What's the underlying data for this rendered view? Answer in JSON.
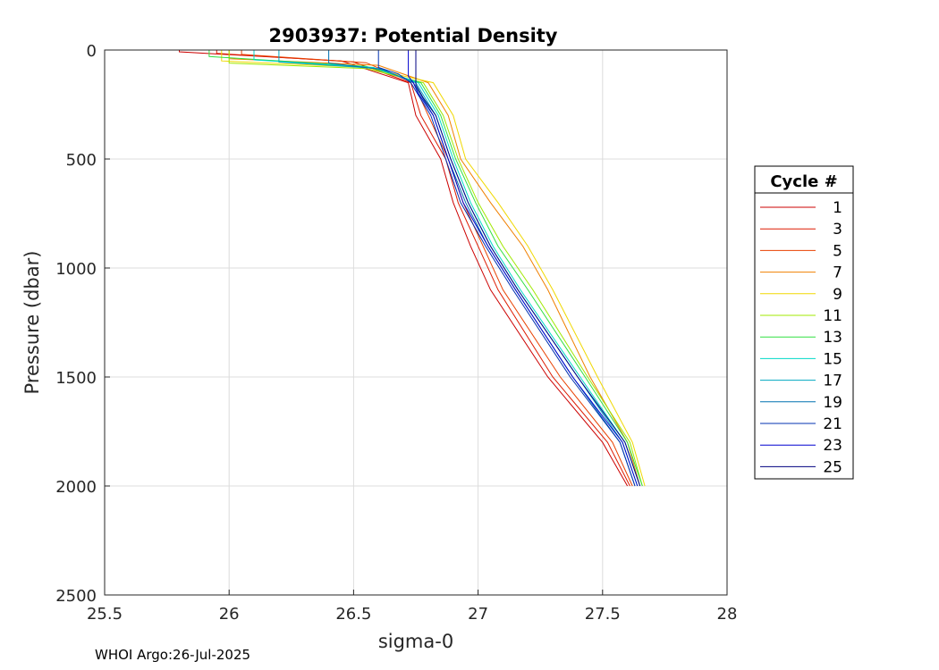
{
  "chart_data": {
    "type": "line",
    "title": "2903937: Potential Density",
    "xlabel": "sigma-0",
    "ylabel": "Pressure (dbar)",
    "xlim": [
      25.5,
      28
    ],
    "ylim": [
      0,
      2500
    ],
    "y_reversed": true,
    "grid": true,
    "xticks": [
      "25.5",
      "26",
      "26.5",
      "27",
      "27.5",
      "28"
    ],
    "yticks": [
      "0",
      "500",
      "1000",
      "1500",
      "2000",
      "2500"
    ],
    "legend": {
      "title": "Cycle #",
      "placement": "right",
      "entries": [
        "1",
        "3",
        "5",
        "7",
        "9",
        "11",
        "13",
        "15",
        "17",
        "19",
        "21",
        "23",
        "25"
      ]
    },
    "series": [
      {
        "name": "1",
        "color": "#cc0000",
        "x": [
          25.8,
          25.8,
          26.45,
          26.72,
          26.75,
          26.85,
          26.9,
          26.97,
          27.05,
          27.28,
          27.5,
          27.6
        ],
        "y": [
          0,
          8,
          50,
          150,
          300,
          500,
          700,
          900,
          1100,
          1500,
          1800,
          2000
        ]
      },
      {
        "name": "3",
        "color": "#dd1a00",
        "x": [
          25.95,
          25.95,
          26.5,
          26.73,
          26.77,
          26.87,
          26.92,
          27.0,
          27.08,
          27.3,
          27.52,
          27.61
        ],
        "y": [
          0,
          15,
          55,
          150,
          300,
          500,
          700,
          900,
          1100,
          1500,
          1800,
          2000
        ]
      },
      {
        "name": "5",
        "color": "#e84000",
        "x": [
          26.05,
          26.05,
          26.55,
          26.74,
          26.8,
          26.88,
          26.94,
          27.02,
          27.1,
          27.33,
          27.54,
          27.62
        ],
        "y": [
          0,
          20,
          58,
          150,
          300,
          500,
          700,
          900,
          1100,
          1500,
          1800,
          2000
        ]
      },
      {
        "name": "7",
        "color": "#f08000",
        "x": [
          26.0,
          26.0,
          26.6,
          26.8,
          26.88,
          26.93,
          27.05,
          27.18,
          27.28,
          27.45,
          27.6,
          27.65
        ],
        "y": [
          0,
          40,
          70,
          150,
          300,
          500,
          700,
          900,
          1100,
          1500,
          1800,
          2000
        ]
      },
      {
        "name": "9",
        "color": "#f0d800",
        "x": [
          25.97,
          25.97,
          26.55,
          26.82,
          26.9,
          26.95,
          27.08,
          27.2,
          27.3,
          27.48,
          27.62,
          27.67
        ],
        "y": [
          0,
          50,
          80,
          150,
          300,
          500,
          700,
          900,
          1100,
          1500,
          1800,
          2000
        ]
      },
      {
        "name": "11",
        "color": "#a0e800",
        "x": [
          26.0,
          26.0,
          26.55,
          26.78,
          26.86,
          26.92,
          27.0,
          27.1,
          27.22,
          27.44,
          27.61,
          27.66
        ],
        "y": [
          0,
          60,
          85,
          150,
          300,
          500,
          700,
          900,
          1100,
          1500,
          1800,
          2000
        ]
      },
      {
        "name": "13",
        "color": "#30e040",
        "x": [
          25.92,
          25.92,
          26.55,
          26.77,
          26.85,
          26.91,
          26.99,
          27.08,
          27.2,
          27.43,
          27.6,
          27.66
        ],
        "y": [
          0,
          30,
          75,
          150,
          300,
          500,
          700,
          900,
          1100,
          1500,
          1800,
          2000
        ]
      },
      {
        "name": "15",
        "color": "#00d8c8",
        "x": [
          26.1,
          26.1,
          26.58,
          26.76,
          26.84,
          26.9,
          26.97,
          27.06,
          27.17,
          27.41,
          27.59,
          27.65
        ],
        "y": [
          0,
          45,
          80,
          150,
          300,
          500,
          700,
          900,
          1100,
          1500,
          1800,
          2000
        ]
      },
      {
        "name": "17",
        "color": "#00a8c0",
        "x": [
          26.2,
          26.2,
          26.6,
          26.75,
          26.83,
          26.89,
          26.96,
          27.05,
          27.16,
          27.4,
          27.58,
          27.64
        ],
        "y": [
          0,
          55,
          85,
          150,
          300,
          500,
          700,
          900,
          1100,
          1500,
          1800,
          2000
        ]
      },
      {
        "name": "19",
        "color": "#0070b0",
        "x": [
          26.4,
          26.4,
          26.62,
          26.74,
          26.82,
          26.88,
          26.95,
          27.04,
          27.15,
          27.38,
          27.57,
          27.63
        ],
        "y": [
          0,
          60,
          90,
          150,
          300,
          500,
          700,
          900,
          1100,
          1500,
          1800,
          2000
        ]
      },
      {
        "name": "21",
        "color": "#0030b0",
        "x": [
          26.6,
          26.6,
          26.68,
          26.73,
          26.81,
          26.87,
          26.93,
          27.03,
          27.14,
          27.37,
          27.57,
          27.63
        ],
        "y": [
          0,
          80,
          110,
          150,
          300,
          500,
          700,
          900,
          1100,
          1500,
          1800,
          2000
        ]
      },
      {
        "name": "23",
        "color": "#0000d0",
        "x": [
          26.72,
          26.72,
          26.74,
          26.76,
          26.82,
          26.88,
          26.94,
          27.04,
          27.15,
          27.38,
          27.58,
          27.64
        ],
        "y": [
          0,
          120,
          150,
          200,
          300,
          500,
          700,
          900,
          1100,
          1500,
          1800,
          2000
        ]
      },
      {
        "name": "25",
        "color": "#000080",
        "x": [
          26.75,
          26.75,
          26.76,
          26.78,
          26.83,
          26.89,
          26.96,
          27.05,
          27.16,
          27.4,
          27.59,
          27.65
        ],
        "y": [
          0,
          160,
          180,
          220,
          300,
          500,
          700,
          900,
          1100,
          1500,
          1800,
          2000
        ]
      }
    ]
  },
  "footer": {
    "text": "WHOI Argo:26-Jul-2025"
  }
}
